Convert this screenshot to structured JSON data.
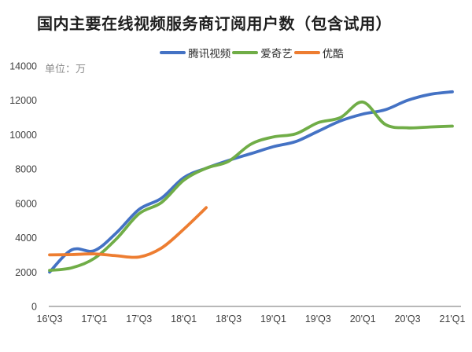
{
  "chart_data": {
    "type": "line",
    "title": "国内主要在线视频服务商订阅用户数（包含试用）",
    "unit_label": "单位：万",
    "legend_position": "top-center",
    "grid": false,
    "background": "#ffffff",
    "axis_line_color": "#a0a0a0",
    "tick_label_color": "#3f3f3f",
    "ylim": [
      0,
      14000
    ],
    "y_ticks": [
      0,
      2000,
      4000,
      6000,
      8000,
      10000,
      12000,
      14000
    ],
    "x_tick_labels": [
      "16'Q3",
      "17'Q1",
      "17'Q3",
      "18'Q1",
      "18'Q3",
      "19'Q1",
      "19'Q3",
      "20'Q1",
      "20'Q3",
      "21'Q1"
    ],
    "x_quarters": [
      "16'Q3",
      "16'Q4",
      "17'Q1",
      "17'Q2",
      "17'Q3",
      "17'Q4",
      "18'Q1",
      "18'Q2",
      "18'Q3",
      "18'Q4",
      "19'Q1",
      "19'Q2",
      "19'Q3",
      "19'Q4",
      "20'Q1",
      "20'Q2",
      "20'Q3",
      "20'Q4",
      "21'Q1"
    ],
    "series": [
      {
        "id": "tencent-video",
        "name": "腾讯视频",
        "color": "#4472C4",
        "values": [
          2000,
          3300,
          3250,
          4300,
          5650,
          6300,
          7500,
          8050,
          8500,
          8900,
          9300,
          9600,
          10200,
          10800,
          11200,
          11450,
          12000,
          12350,
          12500
        ]
      },
      {
        "id": "iqiyi",
        "name": "爱奇艺",
        "color": "#70AD47",
        "values": [
          2100,
          2250,
          2800,
          3950,
          5400,
          6050,
          7350,
          8050,
          8450,
          9450,
          9870,
          10050,
          10700,
          11000,
          11900,
          10600,
          10400,
          10450,
          10500
        ]
      },
      {
        "id": "youku",
        "name": "优酷",
        "color": "#ED7D31",
        "values": [
          3000,
          3020,
          3060,
          2950,
          2880,
          3400,
          4500,
          5750
        ]
      }
    ]
  }
}
